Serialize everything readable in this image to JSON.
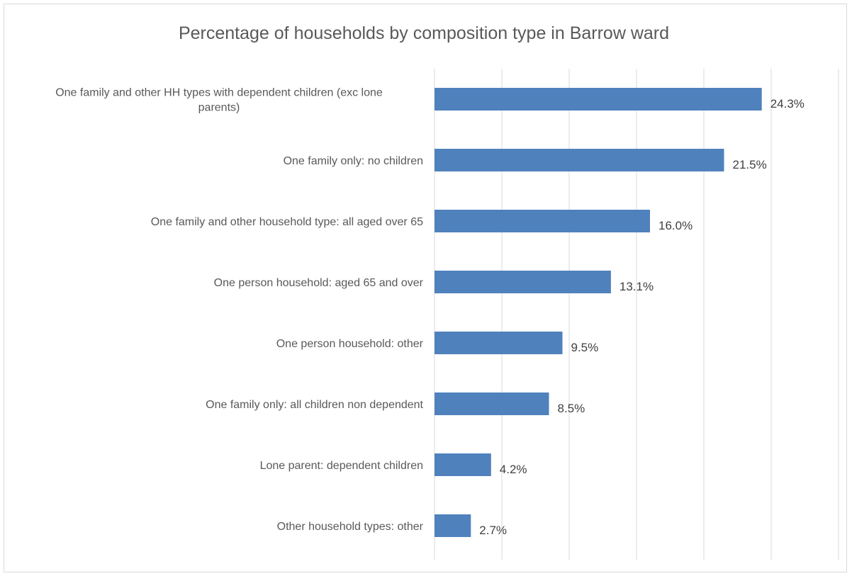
{
  "chart_data": {
    "type": "bar",
    "orientation": "horizontal",
    "title": "Percentage of households by composition type in Barrow ward",
    "xlabel": "",
    "ylabel": "",
    "xlim": [
      0,
      30
    ],
    "grid": "vertical gridlines at every 5%",
    "legend": "none",
    "bar_color": "#4f81bd",
    "categories": [
      [
        "One family and other HH types with dependent children (exc lone",
        "parents)"
      ],
      [
        "One family only: no children"
      ],
      [
        "One family and other household type: all aged over 65"
      ],
      [
        "One person household: aged 65 and over"
      ],
      [
        "One person household: other"
      ],
      [
        "One family only: all children non dependent"
      ],
      [
        "Lone parent: dependent children"
      ],
      [
        "Other household types: other"
      ]
    ],
    "values": [
      24.3,
      21.5,
      16.0,
      13.1,
      9.5,
      8.5,
      4.2,
      2.7
    ],
    "value_labels": [
      "24.3%",
      "21.5%",
      "16.0%",
      "13.1%",
      "9.5%",
      "8.5%",
      "4.2%",
      "2.7%"
    ]
  }
}
